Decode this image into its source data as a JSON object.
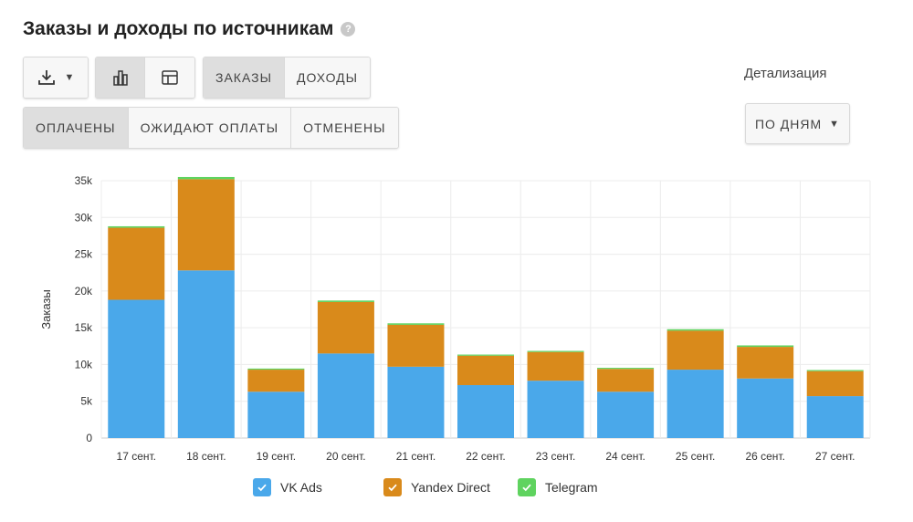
{
  "header": {
    "title": "Заказы и доходы по источникам",
    "help_icon": "?"
  },
  "toolbar": {
    "download_icon": "download-icon",
    "download_caret": "▼",
    "view_chart_icon": "bar-chart-icon",
    "view_table_icon": "table-icon",
    "tab_orders": "ЗАКАЗЫ",
    "tab_income": "ДОХОДЫ"
  },
  "status_filters": [
    "ОПЛАЧЕНЫ",
    "ОЖИДАЮТ ОПЛАТЫ",
    "ОТМЕНЕНЫ"
  ],
  "detail": {
    "label": "Детализация",
    "value": "ПО ДНЯМ",
    "caret": "▼"
  },
  "colors": {
    "vk": "#4aa8ea",
    "yandex": "#d98a1b",
    "telegram": "#5fd35f"
  },
  "chart_data": {
    "type": "bar",
    "stacked": true,
    "ylabel": "Заказы",
    "xlabel": "",
    "ylim": [
      0,
      35000
    ],
    "yticks": [
      "0",
      "5k",
      "10k",
      "15k",
      "20k",
      "25k",
      "30k",
      "35k"
    ],
    "ytick_values": [
      0,
      5000,
      10000,
      15000,
      20000,
      25000,
      30000,
      35000
    ],
    "categories": [
      "17 сент.",
      "18 сент.",
      "19 сент.",
      "20 сент.",
      "21 сент.",
      "22 сент.",
      "23 сент.",
      "24 сент.",
      "25 сент.",
      "26 сент.",
      "27 сент."
    ],
    "series": [
      {
        "name": "VK Ads",
        "color": "#4aa8ea",
        "values": [
          18800,
          22800,
          6300,
          11500,
          9700,
          7200,
          7800,
          6300,
          9300,
          8100,
          5700
        ]
      },
      {
        "name": "Yandex Direct",
        "color": "#d98a1b",
        "values": [
          9800,
          12400,
          3000,
          7000,
          5700,
          4000,
          3900,
          3100,
          5300,
          4300,
          3400
        ]
      },
      {
        "name": "Telegram",
        "color": "#5fd35f",
        "values": [
          200,
          300,
          150,
          200,
          200,
          150,
          150,
          150,
          200,
          200,
          150
        ]
      }
    ],
    "grid": true,
    "legend_position": "bottom"
  }
}
